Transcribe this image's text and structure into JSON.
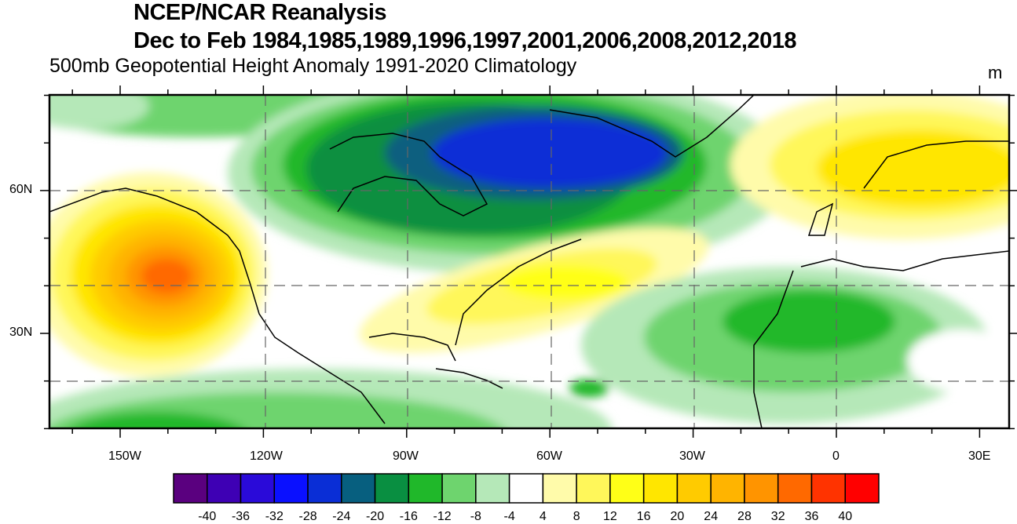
{
  "title": "NCEP/NCAR Reanalysis",
  "subtitle": "Dec to Feb 1984,1985,1989,1996,1997,2001,2006,2008,2012,2018",
  "variable": "500mb Geopotential Height Anomaly  1991-2020 Climatology",
  "units": "m",
  "lon_labels": [
    "150W",
    "120W",
    "90W",
    "60W",
    "30W",
    "0",
    "30E"
  ],
  "lat_labels": [
    "60N",
    "30N"
  ],
  "colorbar": {
    "levels": [
      "-40",
      "-36",
      "-32",
      "-28",
      "-24",
      "-20",
      "-16",
      "-12",
      "-8",
      "-4",
      "4",
      "8",
      "12",
      "16",
      "20",
      "24",
      "28",
      "32",
      "36",
      "40"
    ],
    "colors": [
      "#5a007f",
      "#3e00b4",
      "#2a0ad9",
      "#0a10ff",
      "#0a2ed6",
      "#075f7f",
      "#098f41",
      "#20b82a",
      "#6ed46e",
      "#b5e8b8",
      "#ffffff",
      "#fffbaa",
      "#fff75a",
      "#ffff17",
      "#ffe600",
      "#ffcb00",
      "#ffb400",
      "#ff9400",
      "#ff6900",
      "#ff3300",
      "#ff0000"
    ]
  }
}
